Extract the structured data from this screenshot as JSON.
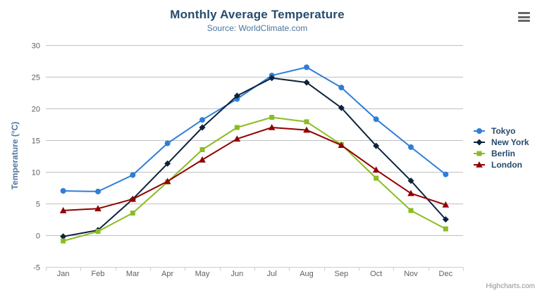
{
  "chart_data": {
    "type": "line",
    "title": "Monthly Average Temperature",
    "subtitle": "Source: WorldClimate.com",
    "ylabel": "Temperature (°C)",
    "xlabel": "",
    "categories": [
      "Jan",
      "Feb",
      "Mar",
      "Apr",
      "May",
      "Jun",
      "Jul",
      "Aug",
      "Sep",
      "Oct",
      "Nov",
      "Dec"
    ],
    "ylim": [
      -5,
      30
    ],
    "ytick_step": 5,
    "ytick_labels": [
      "-5",
      "0",
      "5",
      "10",
      "15",
      "20",
      "25",
      "30"
    ],
    "grid": true,
    "legend_position": "right",
    "series": [
      {
        "name": "Tokyo",
        "color": "#2f7ed8",
        "symbol": "circle",
        "values": [
          7.0,
          6.9,
          9.5,
          14.5,
          18.2,
          21.5,
          25.2,
          26.5,
          23.3,
          18.3,
          13.9,
          9.6
        ]
      },
      {
        "name": "New York",
        "color": "#0d233a",
        "symbol": "diamond",
        "values": [
          -0.2,
          0.8,
          5.7,
          11.3,
          17.0,
          22.0,
          24.8,
          24.1,
          20.1,
          14.1,
          8.6,
          2.5
        ]
      },
      {
        "name": "Berlin",
        "color": "#8bbc21",
        "symbol": "square",
        "values": [
          -0.9,
          0.6,
          3.5,
          8.4,
          13.5,
          17.0,
          18.6,
          17.9,
          14.3,
          9.0,
          3.9,
          1.0
        ]
      },
      {
        "name": "London",
        "color": "#910000",
        "symbol": "triangle",
        "values": [
          3.9,
          4.2,
          5.7,
          8.5,
          11.9,
          15.2,
          17.0,
          16.6,
          14.2,
          10.3,
          6.6,
          4.8
        ]
      }
    ]
  },
  "credits": {
    "label": "Highcharts.com"
  },
  "export_menu": {
    "icon": "hamburger-icon"
  },
  "colors": {
    "title_text": "#274b6d",
    "subtitle_text": "#4d759e",
    "axis_title_text": "#4d759e",
    "tick_label_text": "#606060",
    "grid_line": "#c0c0c0",
    "axis_line": "#c0d0e0",
    "legend_text": "#274b6d",
    "credits_text": "#909090",
    "burger_icon": "#666666"
  }
}
